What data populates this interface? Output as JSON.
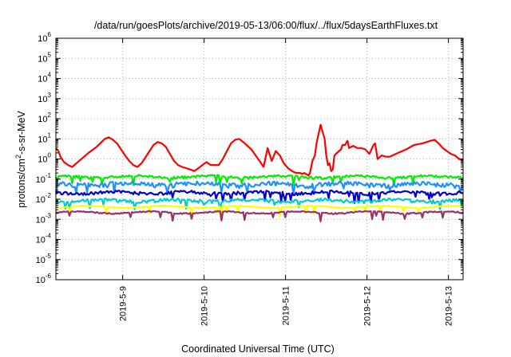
{
  "chart_data": {
    "type": "line",
    "title": "/data/run/goesPlots/archive/2019-05-13/06:00/flux/../flux/5daysEarthFluxes.txt",
    "xlabel": "Coordinated Universal Time (UTC)",
    "ylabel_parts": [
      "protons/cm",
      "2",
      "-s-sr-MeV"
    ],
    "y_scale": "log",
    "ylim_exp": [
      -6,
      6
    ],
    "y_tick_exponents": [
      -6,
      -5,
      -4,
      -3,
      -2,
      -1,
      0,
      1,
      2,
      3,
      4,
      5,
      6
    ],
    "y_tick_base": "10",
    "xlim_days": [
      0,
      5
    ],
    "x_ticks": [
      {
        "label": "2019-5-9",
        "day": 0.82
      },
      {
        "label": "2019-5-10",
        "day": 1.82
      },
      {
        "label": "2019-5-11",
        "day": 2.82
      },
      {
        "label": "2019-5-12",
        "day": 3.82
      },
      {
        "label": "2019-5-13",
        "day": 4.82
      }
    ],
    "grid": true,
    "legend": "none",
    "series": [
      {
        "color": "#ff0000",
        "x": [
          0,
          0.03,
          0.06,
          0.1,
          0.15,
          0.2,
          0.25,
          0.3,
          0.4,
          0.5,
          0.6,
          0.65,
          0.7,
          0.75,
          0.8,
          0.85,
          0.9,
          0.95,
          1.0,
          1.05,
          1.1,
          1.15,
          1.2,
          1.25,
          1.3,
          1.35,
          1.4,
          1.45,
          1.5,
          1.55,
          1.6,
          1.65,
          1.7,
          1.75,
          1.8,
          1.85,
          1.9,
          2.0,
          2.05,
          2.1,
          2.15,
          2.2,
          2.25,
          2.3,
          2.4,
          2.5,
          2.55,
          2.6,
          2.65,
          2.7,
          2.75,
          2.8,
          2.85,
          2.9,
          2.95,
          3.0,
          3.02,
          3.05,
          3.08,
          3.1,
          3.12,
          3.15,
          3.18,
          3.2,
          3.25,
          3.3,
          3.32,
          3.34,
          3.36,
          3.38,
          3.4,
          3.42,
          3.45,
          3.5,
          3.52,
          3.55,
          3.58,
          3.6,
          3.65,
          3.7,
          3.75,
          3.8,
          3.85,
          3.9,
          3.92,
          3.95,
          4.0,
          4.05,
          4.1,
          4.2,
          4.3,
          4.4,
          4.5,
          4.6,
          4.65,
          4.7,
          4.75,
          4.8,
          4.85,
          4.9,
          4.95,
          5.0
        ],
        "y": [
          3.5,
          2.5,
          1.2,
          0.7,
          0.5,
          0.4,
          0.6,
          0.9,
          2.0,
          4.0,
          10,
          12,
          9,
          6,
          3,
          1.5,
          0.8,
          0.5,
          0.4,
          0.6,
          1.2,
          2.5,
          5,
          7,
          6,
          4,
          1.8,
          0.8,
          0.5,
          0.4,
          0.35,
          0.3,
          0.25,
          0.35,
          0.5,
          0.7,
          0.5,
          0.5,
          1.0,
          2.5,
          6,
          9,
          10,
          7,
          3,
          0.8,
          0.4,
          3.5,
          0.8,
          2.5,
          1.5,
          0.6,
          0.35,
          0.25,
          0.2,
          0.2,
          0.18,
          0.2,
          0.17,
          0.15,
          0.2,
          0.8,
          1.5,
          6,
          50,
          10,
          1.5,
          0.5,
          0.6,
          0.25,
          0.3,
          1.5,
          2,
          3,
          5,
          5,
          8,
          3.5,
          4.5,
          3.5,
          3.5,
          3,
          1.8,
          5,
          6,
          1.0,
          1.5,
          1.3,
          1.3,
          2,
          3,
          5,
          6,
          8,
          9,
          6,
          3.5,
          2.5,
          1.8,
          1.5,
          1.0,
          0.9
        ]
      },
      {
        "color": "#00ee00",
        "base": 0.13,
        "amp": 0.14,
        "seed": 11
      },
      {
        "color": "#1e90ff",
        "base": 0.055,
        "amp": 0.26,
        "seed": 23
      },
      {
        "color": "#0000cc",
        "base": 0.021,
        "amp": 0.18,
        "seed": 37
      },
      {
        "color": "#00cccc",
        "base": 0.0085,
        "amp": 0.18,
        "seed": 51
      },
      {
        "color": "#ffff00",
        "base": 0.0042,
        "amp": 0.05,
        "seed": 67
      },
      {
        "color": "#993366",
        "base": 0.0022,
        "amp": 0.07,
        "seed": 83
      }
    ]
  }
}
